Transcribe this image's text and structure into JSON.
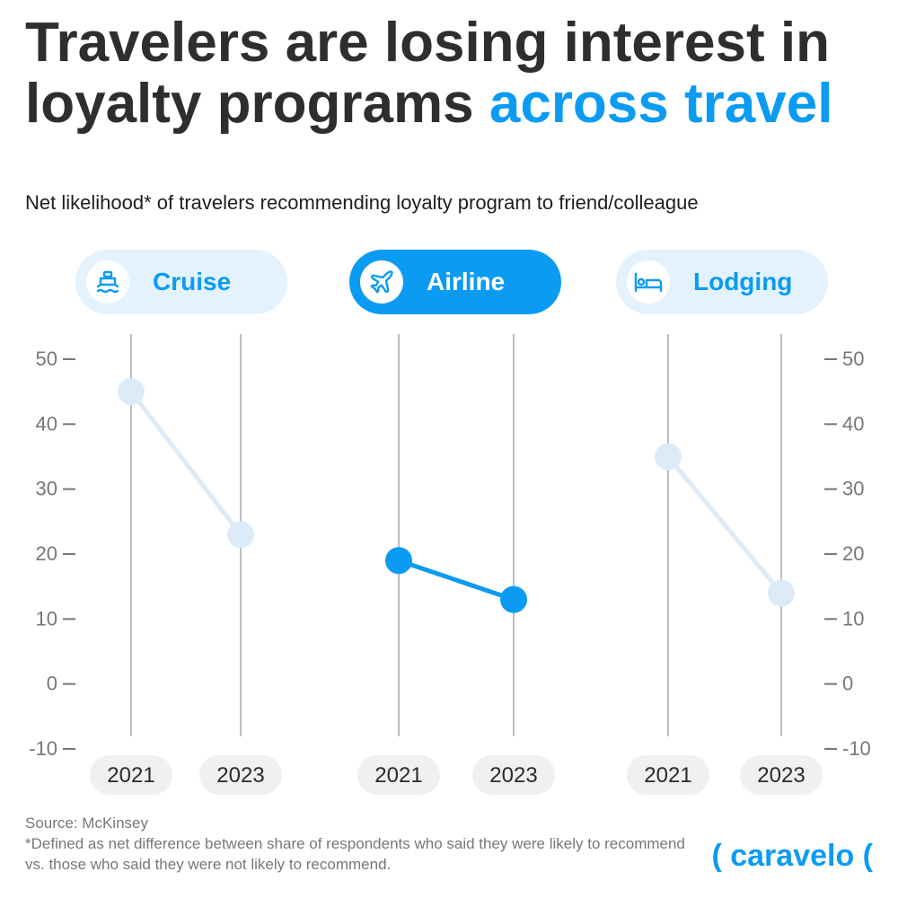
{
  "title": {
    "main": "Travelers are losing interest in loyalty programs",
    "accent": "across travel"
  },
  "subtitle": "Net likelihood* of travelers recommending loyalty program to friend/colleague",
  "categories": [
    {
      "label": "Cruise",
      "icon": "ship-icon",
      "highlighted": false
    },
    {
      "label": "Airline",
      "icon": "airplane-icon",
      "highlighted": true
    },
    {
      "label": "Lodging",
      "icon": "bed-icon",
      "highlighted": false
    }
  ],
  "chart_data": {
    "type": "line",
    "x": [
      "2021",
      "2023"
    ],
    "series": [
      {
        "name": "Cruise",
        "values": [
          45,
          23
        ]
      },
      {
        "name": "Airline",
        "values": [
          19,
          13
        ]
      },
      {
        "name": "Lodging",
        "values": [
          35,
          14
        ]
      }
    ],
    "ylim": [
      -10,
      50
    ],
    "yticks": [
      50,
      40,
      30,
      20,
      10,
      0,
      -10
    ],
    "highlight_series": "Airline",
    "grid": false
  },
  "colors": {
    "accent": "#0b9bf2",
    "muted": "#dcebf7",
    "axis": "#bdbdbd",
    "text": "#2e2e2e",
    "tick": "#777777"
  },
  "footnote": {
    "source": "Source: McKinsey",
    "definition": "*Defined as net difference between share of respondents who said they were likely to recommend vs. those who said they were not likely to recommend."
  },
  "brand": "( caravelo ("
}
